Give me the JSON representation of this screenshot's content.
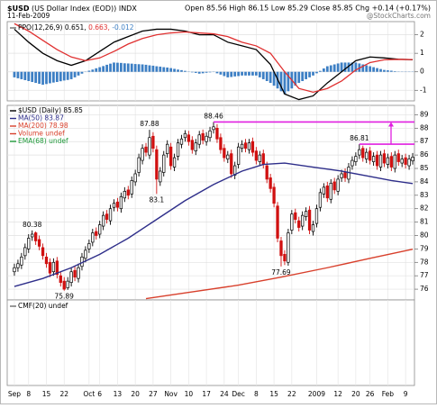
{
  "header": {
    "symbol": "$USD",
    "name": "(US Dollar Index (EOD)) INDX",
    "quote": "Open 85.56 High 86.15 Low 85.29 Close 85.85 Chg +0.14 (+0.17%)",
    "date": "11-Feb-2009",
    "source": "@StockCharts.com"
  },
  "chart_data": [
    {
      "type": "line",
      "legend_title": "PPO(12,26,9)",
      "xlim": [
        -0.5,
        112.5
      ],
      "ylim": [
        -1.57,
        2.71
      ],
      "yticks": [
        2,
        1,
        0,
        -1
      ],
      "series": [
        {
          "label": "0.651,",
          "color": "#000000",
          "x": [
            0,
            4,
            8,
            12,
            16,
            20,
            24,
            28,
            32,
            36,
            40,
            44,
            48,
            52,
            56,
            60,
            64,
            68,
            72,
            76,
            80,
            84,
            88,
            92,
            96,
            100,
            104,
            108,
            112
          ],
          "values": [
            2.3,
            1.6,
            1.0,
            0.6,
            0.35,
            0.6,
            1.1,
            1.6,
            1.9,
            2.2,
            2.3,
            2.3,
            2.2,
            2.0,
            2.0,
            1.6,
            1.4,
            1.2,
            0.4,
            -1.2,
            -1.5,
            -1.3,
            -0.6,
            0.0,
            0.6,
            0.8,
            0.75,
            0.68,
            0.651
          ]
        },
        {
          "label": "0.663,",
          "color": "#e03030",
          "x": [
            0,
            4,
            8,
            12,
            16,
            20,
            24,
            28,
            32,
            36,
            40,
            44,
            48,
            52,
            56,
            60,
            64,
            68,
            72,
            76,
            80,
            84,
            88,
            92,
            96,
            100,
            104,
            108,
            112
          ],
          "values": [
            2.6,
            2.2,
            1.7,
            1.2,
            0.8,
            0.6,
            0.75,
            1.1,
            1.5,
            1.8,
            2.0,
            2.1,
            2.15,
            2.1,
            2.05,
            1.9,
            1.6,
            1.4,
            1.0,
            0.0,
            -0.9,
            -1.1,
            -0.9,
            -0.5,
            0.1,
            0.5,
            0.65,
            0.67,
            0.663
          ]
        },
        {
          "label": "-0.012",
          "color": "#3d7fc4",
          "type": "bar",
          "values": [
            -0.3,
            -0.35,
            -0.4,
            -0.45,
            -0.5,
            -0.55,
            -0.6,
            -0.65,
            -0.7,
            -0.66,
            -0.62,
            -0.58,
            -0.55,
            -0.51,
            -0.47,
            -0.44,
            -0.4,
            -0.3,
            -0.2,
            -0.1,
            0.0,
            0.06,
            0.12,
            0.19,
            0.25,
            0.31,
            0.38,
            0.44,
            0.5,
            0.49,
            0.48,
            0.46,
            0.45,
            0.44,
            0.42,
            0.41,
            0.4,
            0.38,
            0.35,
            0.33,
            0.3,
            0.28,
            0.25,
            0.23,
            0.2,
            0.16,
            0.12,
            0.09,
            0.05,
            0.01,
            -0.03,
            -0.06,
            -0.1,
            -0.08,
            -0.05,
            -0.03,
            0.0,
            -0.08,
            -0.15,
            -0.23,
            -0.3,
            -0.28,
            -0.25,
            -0.23,
            -0.2,
            -0.2,
            -0.2,
            -0.2,
            -0.2,
            -0.3,
            -0.4,
            -0.5,
            -0.6,
            -0.75,
            -0.9,
            -1.05,
            -1.2,
            -1.05,
            -0.9,
            -0.75,
            -0.6,
            -0.5,
            -0.4,
            -0.3,
            -0.2,
            -0.08,
            0.05,
            0.18,
            0.3,
            0.35,
            0.4,
            0.45,
            0.5,
            0.5,
            0.5,
            0.5,
            0.5,
            0.45,
            0.4,
            0.35,
            0.3,
            0.25,
            0.2,
            0.15,
            0.1,
            0.08,
            0.06,
            0.03,
            0.01,
            0.0,
            -0.005,
            -0.01,
            -0.012
          ]
        }
      ]
    },
    {
      "type": "candlestick",
      "xlim": [
        -0.5,
        112.5
      ],
      "ylim": [
        75.2,
        89.7
      ],
      "yticks": [
        76,
        77,
        78,
        79,
        80,
        81,
        82,
        83,
        84,
        85,
        86,
        87,
        88,
        89
      ],
      "grid": true,
      "legend": [
        {
          "text": "$USD (Daily) 85.85",
          "color": "#000000"
        },
        {
          "text": "MA(50) 83.87",
          "color": "#2e2e8a"
        },
        {
          "text": "MA(200) 78.98",
          "color": "#d8402c"
        },
        {
          "text": "Volume undef",
          "color": "#d8402c"
        },
        {
          "text": "EMA(68) undef",
          "color": "#1f9a3a"
        }
      ],
      "open": [
        77.3,
        77.6,
        77.8,
        78.5,
        79.0,
        79.9,
        80.2,
        79.7,
        79.1,
        78.4,
        78.0,
        77.3,
        78.1,
        77.0,
        76.6,
        76.1,
        76.5,
        77.4,
        76.8,
        77.7,
        78.3,
        79.0,
        79.5,
        80.3,
        80.1,
        80.7,
        81.6,
        81.1,
        82.1,
        82.5,
        82.0,
        82.8,
        83.4,
        83.1,
        84.0,
        84.7,
        85.6,
        86.6,
        86.0,
        87.4,
        86.4,
        84.0,
        84.7,
        86.1,
        86.6,
        85.1,
        85.9,
        86.8,
        87.3,
        87.5,
        87.1,
        86.3,
        86.8,
        87.6,
        87.0,
        87.3,
        87.9,
        88.0,
        87.3,
        86.5,
        85.7,
        86.1,
        84.5,
        85.3,
        86.5,
        86.9,
        86.4,
        87.0,
        86.3,
        85.5,
        86.1,
        85.2,
        84.3,
        83.6,
        82.2,
        79.6,
        78.6,
        78.0,
        80.4,
        81.7,
        81.1,
        80.7,
        81.4,
        81.9,
        80.3,
        80.9,
        82.1,
        83.1,
        83.7,
        82.7,
        84.0,
        83.3,
        84.3,
        84.7,
        84.2,
        85.2,
        85.5,
        86.0,
        86.5,
        85.7,
        86.3,
        85.5,
        86.0,
        85.1,
        86.1,
        85.3,
        85.9,
        85.0,
        86.1,
        85.4,
        85.8,
        85.2,
        85.56
      ],
      "high": [
        77.9,
        78.2,
        78.7,
        79.4,
        80.1,
        80.38,
        80.3,
        80.0,
        79.4,
        78.7,
        78.3,
        78.3,
        78.4,
        77.3,
        76.9,
        76.9,
        77.6,
        77.7,
        77.9,
        78.7,
        79.2,
        79.7,
        80.5,
        80.6,
        81.1,
        81.8,
        81.9,
        82.3,
        82.7,
        82.8,
        83.2,
        83.6,
        83.7,
        84.4,
        84.9,
        86.1,
        86.8,
        86.9,
        87.88,
        87.7,
        86.7,
        85.1,
        86.3,
        87.1,
        86.9,
        86.1,
        87.2,
        87.5,
        87.85,
        87.8,
        87.4,
        87.2,
        87.8,
        87.9,
        87.7,
        88.1,
        88.46,
        88.3,
        87.6,
        86.8,
        86.3,
        86.4,
        85.5,
        86.9,
        87.1,
        87.2,
        87.2,
        87.3,
        86.6,
        86.3,
        86.4,
        85.5,
        84.6,
        83.9,
        82.5,
        79.9,
        78.9,
        80.5,
        81.9,
        82.0,
        81.4,
        81.8,
        82.1,
        82.2,
        81.1,
        82.3,
        83.5,
        83.9,
        84.0,
        84.2,
        84.3,
        84.5,
        84.9,
        85.0,
        85.4,
        85.9,
        86.2,
        86.81,
        86.7,
        86.5,
        86.6,
        86.2,
        86.3,
        86.3,
        86.4,
        86.1,
        86.2,
        86.3,
        86.4,
        86.0,
        86.1,
        86.0,
        86.15
      ],
      "low": [
        77.0,
        77.3,
        77.5,
        78.2,
        78.7,
        79.6,
        79.3,
        78.9,
        78.2,
        77.6,
        76.9,
        77.0,
        76.8,
        76.2,
        75.89,
        75.95,
        76.2,
        76.6,
        76.5,
        77.4,
        78.0,
        78.7,
        79.2,
        79.7,
        79.8,
        80.4,
        80.9,
        80.8,
        81.8,
        81.8,
        81.7,
        82.5,
        82.7,
        82.8,
        83.7,
        84.4,
        85.3,
        85.9,
        85.7,
        86.2,
        83.1,
        83.7,
        84.4,
        85.8,
        84.9,
        84.8,
        85.6,
        86.5,
        87.0,
        86.7,
        86.1,
        86.0,
        86.5,
        86.8,
        86.7,
        87.0,
        87.6,
        86.9,
        86.1,
        85.5,
        85.4,
        84.3,
        84.2,
        85.0,
        86.2,
        86.2,
        86.1,
        85.9,
        85.3,
        85.2,
        85.0,
        83.9,
        83.2,
        82.1,
        79.5,
        77.69,
        77.8,
        77.75,
        80.1,
        80.9,
        80.3,
        80.4,
        81.1,
        80.1,
        80.0,
        80.6,
        81.8,
        82.8,
        82.5,
        82.4,
        83.1,
        83.0,
        84.0,
        84.0,
        83.9,
        84.9,
        85.2,
        85.7,
        85.5,
        85.4,
        85.3,
        85.2,
        84.9,
        84.8,
        85.1,
        85.0,
        84.8,
        84.7,
        85.2,
        85.1,
        85.0,
        84.9,
        85.29
      ],
      "close": [
        77.6,
        77.9,
        78.4,
        79.1,
        79.8,
        80.1,
        79.6,
        79.2,
        78.5,
        77.9,
        77.2,
        78.0,
        77.1,
        76.5,
        76.0,
        76.6,
        77.3,
        76.9,
        77.6,
        78.4,
        78.9,
        79.4,
        80.2,
        80.0,
        80.8,
        81.5,
        81.2,
        82.0,
        82.4,
        82.1,
        82.9,
        83.3,
        83.0,
        84.1,
        84.6,
        85.8,
        86.5,
        86.2,
        87.3,
        86.5,
        84.2,
        84.8,
        86.0,
        86.8,
        85.2,
        85.8,
        86.9,
        87.2,
        87.6,
        87.0,
        86.4,
        86.9,
        87.5,
        87.1,
        87.4,
        87.8,
        88.1,
        87.2,
        86.4,
        85.8,
        86.0,
        84.6,
        85.2,
        86.6,
        86.8,
        86.5,
        86.9,
        86.2,
        85.6,
        86.0,
        85.3,
        84.2,
        83.5,
        82.4,
        79.8,
        78.5,
        78.1,
        80.2,
        81.6,
        81.2,
        80.6,
        81.5,
        81.8,
        80.4,
        80.8,
        82.0,
        83.2,
        83.6,
        82.8,
        83.9,
        83.4,
        84.2,
        84.6,
        84.3,
        85.1,
        85.6,
        85.9,
        86.4,
        85.8,
        86.2,
        85.6,
        85.9,
        85.2,
        86.0,
        85.4,
        85.8,
        85.1,
        86.0,
        85.5,
        85.7,
        85.3,
        85.71,
        85.85
      ],
      "overlays": [
        {
          "color": "#2e2e8a",
          "x": [
            0,
            8,
            16,
            24,
            32,
            40,
            48,
            56,
            64,
            70,
            76,
            84,
            92,
            100,
            106,
            112
          ],
          "values": [
            76.2,
            76.8,
            77.6,
            78.6,
            79.8,
            81.2,
            82.6,
            83.8,
            84.8,
            85.3,
            85.4,
            85.1,
            84.8,
            84.4,
            84.1,
            83.87
          ]
        },
        {
          "color": "#d8402c",
          "x": [
            37,
            50,
            63,
            75,
            88,
            100,
            112
          ],
          "values": [
            75.3,
            75.8,
            76.3,
            76.9,
            77.6,
            78.3,
            78.98
          ]
        }
      ],
      "annotations": [
        {
          "value": 80.38,
          "x": 5
        },
        {
          "value": 75.89,
          "x": 14
        },
        {
          "value": 87.88,
          "x": 38
        },
        {
          "value": 83.1,
          "x": 40
        },
        {
          "value": 88.46,
          "x": 56,
          "line": true
        },
        {
          "value": 77.69,
          "x": 75
        },
        {
          "value": 86.81,
          "x": 97,
          "line": true
        }
      ],
      "line_color": "#e020e0"
    },
    {
      "type": "line",
      "legend_title": "CMF(20) undef",
      "xlim": [
        -0.5,
        112.5
      ],
      "xticks": [
        {
          "value": 0,
          "label": "Sep"
        },
        {
          "value": 4,
          "label": "8"
        },
        {
          "value": 9,
          "label": "15"
        },
        {
          "value": 14,
          "label": "22"
        },
        {
          "value": 21,
          "label": "Oct"
        },
        {
          "value": 24,
          "label": "6"
        },
        {
          "value": 29,
          "label": "13"
        },
        {
          "value": 34,
          "label": "20"
        },
        {
          "value": 39,
          "label": "27"
        },
        {
          "value": 44,
          "label": "Nov"
        },
        {
          "value": 49,
          "label": "10"
        },
        {
          "value": 54,
          "label": "17"
        },
        {
          "value": 59,
          "label": "24"
        },
        {
          "value": 63,
          "label": "Dec"
        },
        {
          "value": 68,
          "label": "8"
        },
        {
          "value": 73,
          "label": "15"
        },
        {
          "value": 78,
          "label": "22"
        },
        {
          "value": 85,
          "label": "2009"
        },
        {
          "value": 91,
          "label": "12"
        },
        {
          "value": 96,
          "label": "20"
        },
        {
          "value": 100,
          "label": "26"
        },
        {
          "value": 105,
          "label": "Feb"
        },
        {
          "value": 110,
          "label": "9"
        }
      ]
    }
  ]
}
